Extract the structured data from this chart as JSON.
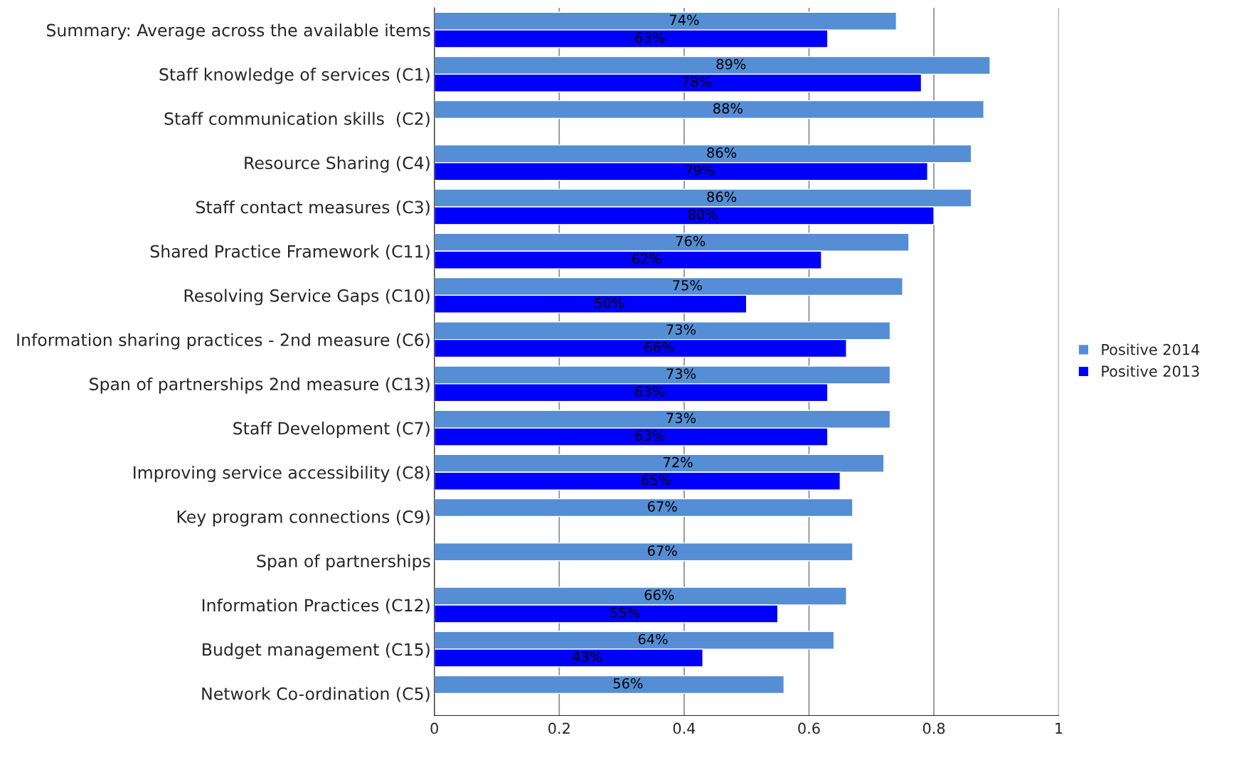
{
  "chart_data": {
    "type": "bar",
    "orientation": "horizontal",
    "categories": [
      "Summary: Average across the available items",
      "Staff knowledge of services (C1)",
      "Staff communication skills  (C2)",
      "Resource Sharing (C4)",
      "Staff contact measures (C3)",
      "Shared Practice Framework (C11)",
      "Resolving Service Gaps (C10)",
      "Information sharing practices - 2nd measure (C6)",
      "Span of partnerships 2nd measure (C13)",
      "Staff Development (C7)",
      "Improving service accessibility (C8)",
      "Key program connections (C9)",
      "Span of partnerships",
      "Information Practices (C12)",
      "Budget management (C15)",
      "Network Co-ordination (C5)"
    ],
    "series": [
      {
        "name": "Positive 2014",
        "color": "#558ed5",
        "values": [
          0.74,
          0.89,
          0.88,
          0.86,
          0.86,
          0.76,
          0.75,
          0.73,
          0.73,
          0.73,
          0.72,
          0.67,
          0.67,
          0.66,
          0.64,
          0.56
        ],
        "value_labels": [
          "74%",
          "89%",
          "88%",
          "86%",
          "86%",
          "76%",
          "75%",
          "73%",
          "73%",
          "73%",
          "72%",
          "67%",
          "67%",
          "66%",
          "64%",
          "56%"
        ]
      },
      {
        "name": "Positive 2013",
        "color": "#0000ff",
        "values": [
          0.63,
          0.78,
          null,
          0.79,
          0.8,
          0.62,
          0.5,
          0.66,
          0.63,
          0.63,
          0.65,
          null,
          null,
          0.55,
          0.43,
          null
        ],
        "value_labels": [
          "63%",
          "78%",
          null,
          "79%",
          "80%",
          "62%",
          "50%",
          "66%",
          "63%",
          "63%",
          "65%",
          null,
          null,
          "55%",
          "43%",
          null
        ]
      }
    ],
    "xlim": [
      0,
      1
    ],
    "xticks": [
      0,
      0.2,
      0.4,
      0.6,
      0.8,
      1
    ],
    "grid": "x",
    "legend": "right"
  }
}
